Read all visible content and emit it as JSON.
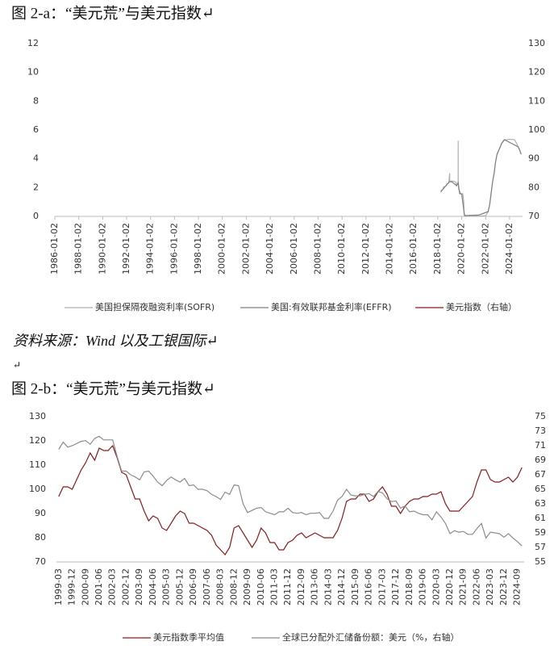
{
  "chart_data": [
    {
      "type": "line",
      "title": "图 2-a：“美元荒”与美元指数↵",
      "xlim": [
        "1986-01-02",
        "2025-02-01"
      ],
      "xticks": [
        "1986-01-02",
        "1988-01-02",
        "1990-01-02",
        "1992-01-02",
        "1994-01-02",
        "1996-01-02",
        "1998-01-02",
        "2000-01-02",
        "2002-01-02",
        "2004-01-02",
        "2006-01-02",
        "2008-01-02",
        "2010-01-02",
        "2012-01-02",
        "2014-01-02",
        "2016-01-02",
        "2018-01-02",
        "2020-01-02",
        "2022-01-02",
        "2024-01-02"
      ],
      "ylim": [
        0,
        12
      ],
      "yticks": [
        0,
        2,
        4,
        6,
        8,
        10,
        12
      ],
      "y2lim": [
        70,
        130
      ],
      "y2ticks": [
        70,
        80,
        90,
        100,
        110,
        120,
        130
      ],
      "series": [
        {
          "name": "美国担保隔夜融资利率(SOFR)",
          "color": "#b0b0b0",
          "x": [
            "2018-04-02",
            "2018-06-01",
            "2018-07-02",
            "2018-09-04",
            "2018-10-01",
            "2018-12-03",
            "2018-12-31",
            "2019-01-02",
            "2019-03-01",
            "2019-05-01",
            "2019-06-03",
            "2019-07-01",
            "2019-08-01",
            "2019-09-16",
            "2019-09-17",
            "2019-09-18",
            "2019-10-01",
            "2019-12-02",
            "2020-01-02",
            "2020-02-03",
            "2020-03-02",
            "2020-03-16",
            "2020-06-01",
            "2021-01-04",
            "2021-06-01",
            "2022-01-03",
            "2022-03-17",
            "2022-05-05",
            "2022-06-16",
            "2022-07-28",
            "2022-09-22",
            "2022-11-03",
            "2022-12-15",
            "2023-02-02",
            "2023-03-23",
            "2023-05-04",
            "2023-07-27",
            "2024-01-02",
            "2024-06-03",
            "2024-09-19",
            "2024-11-08",
            "2024-12-19"
          ],
          "values": [
            1.8,
            1.85,
            2.05,
            2.1,
            2.25,
            2.3,
            3.0,
            2.45,
            2.45,
            2.45,
            2.4,
            2.4,
            2.15,
            2.43,
            5.25,
            2.55,
            1.9,
            1.6,
            1.55,
            1.58,
            1.1,
            0.1,
            0.05,
            0.07,
            0.01,
            0.05,
            0.3,
            0.8,
            1.5,
            2.3,
            3.05,
            3.8,
            4.3,
            4.55,
            4.8,
            5.05,
            5.3,
            5.35,
            5.33,
            4.85,
            4.6,
            4.3
          ]
        },
        {
          "name": "美国:有效联邦基金利率(EFFR)",
          "color": "#808080",
          "x": [
            "2018-04-02",
            "2018-06-14",
            "2018-09-27",
            "2018-12-20",
            "2019-03-01",
            "2019-08-01",
            "2019-09-17",
            "2019-10-31",
            "2020-01-02",
            "2020-03-16",
            "2020-04-01",
            "2021-06-17",
            "2022-03-17",
            "2022-05-05",
            "2022-06-16",
            "2022-07-28",
            "2022-09-22",
            "2022-11-03",
            "2022-12-15",
            "2023-02-02",
            "2023-03-23",
            "2023-05-04",
            "2023-07-27",
            "2024-09-19",
            "2024-11-08",
            "2024-12-19"
          ],
          "values": [
            1.69,
            1.91,
            2.18,
            2.4,
            2.41,
            2.13,
            2.3,
            1.58,
            1.55,
            0.25,
            0.05,
            0.1,
            0.33,
            0.83,
            1.58,
            2.33,
            3.08,
            3.83,
            4.33,
            4.58,
            4.83,
            5.08,
            5.33,
            4.83,
            4.58,
            4.33
          ]
        },
        {
          "name": "美元指数（右轴）",
          "color": "#8b1a1a",
          "axis": "y2"
        }
      ]
    },
    {
      "type": "line",
      "title": "图 2-b：“美元荒”与美元指数↵",
      "categories": [
        "1999-03",
        null,
        null,
        "1999-12",
        null,
        null,
        "2000-09",
        null,
        null,
        "2001-06",
        null,
        null,
        "2002-03",
        null,
        null,
        "2002-12",
        null,
        null,
        "2003-09",
        null,
        null,
        "2004-06",
        null,
        null,
        "2005-03",
        null,
        null,
        "2005-12",
        null,
        null,
        "2006-09",
        null,
        null,
        "2007-06",
        null,
        null,
        "2008-03",
        null,
        null,
        "2008-12",
        null,
        null,
        "2009-09",
        null,
        null,
        "2010-06",
        null,
        null,
        "2011-03",
        null,
        null,
        "2011-12",
        null,
        null,
        "2012-09",
        null,
        null,
        "2013-06",
        null,
        null,
        "2014-03",
        null,
        null,
        "2014-12",
        null,
        null,
        "2015-09",
        null,
        null,
        "2016-06",
        null,
        null,
        "2017-03",
        null,
        null,
        "2017-12",
        null,
        null,
        "2018-09",
        null,
        null,
        "2019-06",
        null,
        null,
        "2020-03",
        null,
        null,
        "2020-12",
        null,
        null,
        "2021-09",
        null,
        null,
        "2022-06",
        null,
        null,
        "2023-03",
        null,
        null,
        "2023-12",
        null,
        null,
        "2024-09",
        null
      ],
      "ylim": [
        70,
        130
      ],
      "yticks": [
        70,
        80,
        90,
        100,
        110,
        120,
        130
      ],
      "y2lim": [
        55,
        75
      ],
      "y2ticks": [
        55,
        57,
        59,
        61,
        63,
        65,
        67,
        69,
        71,
        73,
        75
      ],
      "series": [
        {
          "name": "美元指数季平均值",
          "color": "#8b1a1a",
          "values": [
            97,
            101,
            101,
            100,
            104,
            108,
            111,
            115,
            112,
            117,
            116,
            116,
            118,
            113,
            107,
            106,
            101,
            96,
            96,
            91,
            87,
            89,
            88,
            84,
            83,
            86,
            89,
            91,
            90,
            86,
            86,
            85,
            84,
            83,
            81,
            77,
            75,
            73,
            76,
            84,
            85,
            82,
            79,
            76,
            79,
            84,
            82,
            78,
            78,
            75,
            75,
            78,
            79,
            81,
            82,
            80,
            81,
            82,
            81,
            80,
            80,
            80,
            83,
            88,
            95,
            96,
            96,
            98,
            98,
            95,
            96,
            99,
            101,
            98,
            93,
            93,
            90,
            93,
            95,
            96,
            96,
            97,
            97,
            98,
            98,
            99,
            94,
            91,
            91,
            91,
            93,
            95,
            97,
            103,
            108,
            108,
            104,
            103,
            103,
            104,
            105,
            103,
            105,
            109
          ]
        },
        {
          "name": "全球已分配外汇储备份额：美元（%，右轴）",
          "color": "#8c8c8c",
          "axis": "y2",
          "values": [
            70.5,
            71.5,
            70.8,
            71,
            71.3,
            71.6,
            71.7,
            71.2,
            72,
            72.3,
            71.8,
            71.8,
            71.8,
            69.5,
            67.5,
            67.5,
            67,
            66.7,
            66.3,
            67.4,
            67.5,
            66.8,
            66,
            65.5,
            66.2,
            66.7,
            66.3,
            66,
            66.5,
            65.5,
            65.6,
            65,
            65,
            64.8,
            64.3,
            64,
            63.6,
            64.6,
            64.3,
            65.6,
            65.5,
            63,
            61.8,
            62.1,
            62.4,
            62.5,
            61.9,
            61.7,
            61.5,
            61.9,
            61.9,
            62.4,
            61.8,
            61.7,
            61.8,
            61.5,
            61.7,
            61.7,
            61.8,
            61,
            61,
            62,
            63.5,
            64,
            65,
            64.2,
            64.1,
            64.1,
            64.3,
            64.4,
            64,
            64.7,
            64.5,
            63.7,
            63.3,
            63.4,
            62.4,
            62.7,
            61.9,
            62,
            61.7,
            61.5,
            61.5,
            60.8,
            61.9,
            61.2,
            60.3,
            58.9,
            59.3,
            59.1,
            59.2,
            58.8,
            58.8,
            59.6,
            60.3,
            58.3,
            59.1,
            59,
            58.9,
            58.4,
            58.9,
            58.3,
            57.8,
            57.2
          ]
        }
      ]
    }
  ],
  "source": "资料来源：Wind 以及工银国际↵",
  "blank_paragraph": "↵"
}
